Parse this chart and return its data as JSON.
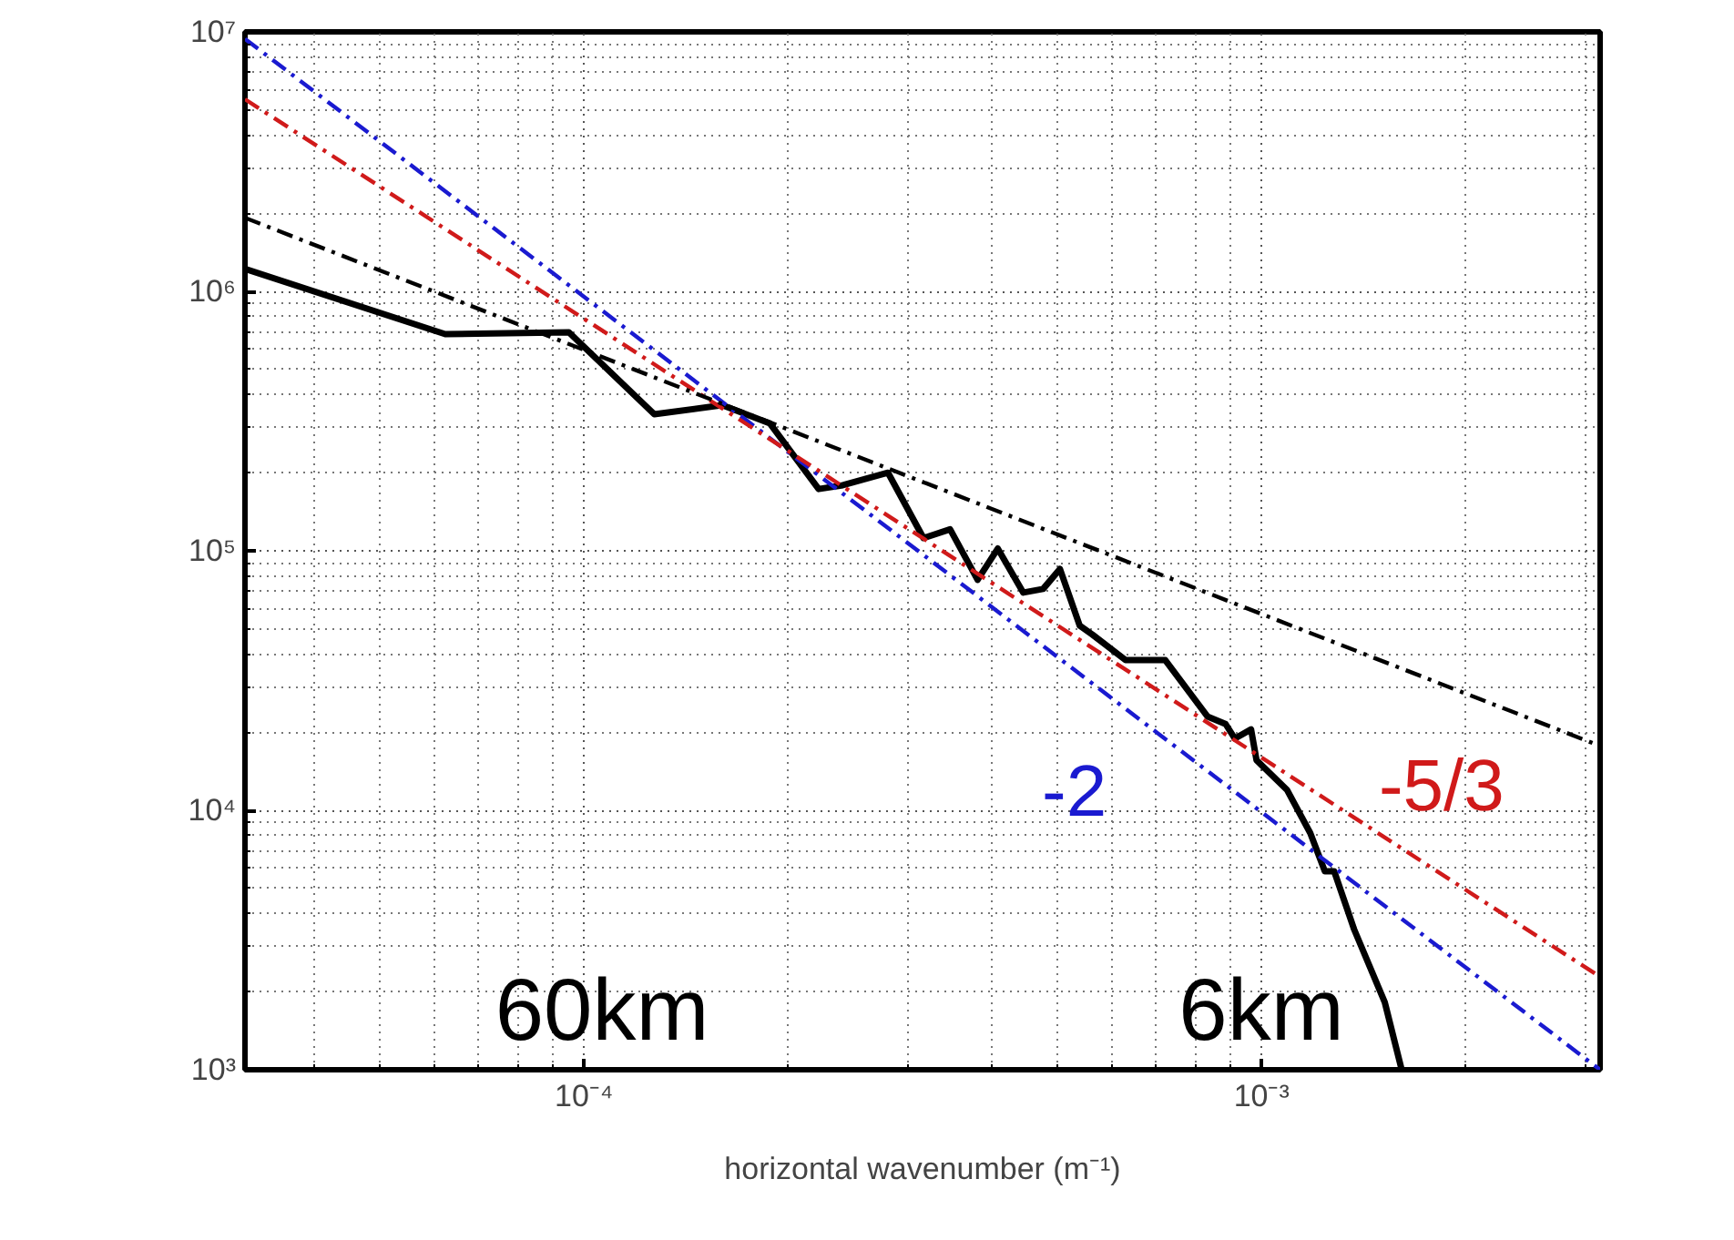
{
  "chart_data": {
    "type": "line",
    "xlabel": "horizontal wavenumber (m⁻¹)",
    "log": "xy",
    "grid": true,
    "xlim": [
      3.16e-05,
      0.00316
    ],
    "ylim": [
      1000,
      10000000
    ],
    "xticks": [
      {
        "value": 0.0001,
        "label": "10⁻⁴"
      },
      {
        "value": 0.001,
        "label": "10⁻³"
      }
    ],
    "yticks": [
      {
        "value": 1000,
        "label": "10³"
      },
      {
        "value": 10000,
        "label": "10⁴"
      },
      {
        "value": 100000,
        "label": "10⁵"
      },
      {
        "value": 1000000,
        "label": "10⁶"
      },
      {
        "value": 10000000,
        "label": "10⁷"
      }
    ],
    "series": [
      {
        "color": "#000000",
        "line_style": "solid",
        "x": [
          3.16e-05,
          6.24e-05,
          9.5e-05,
          0.000127,
          0.00016,
          0.000188,
          0.000222,
          0.000241,
          0.000281,
          0.000317,
          0.000347,
          0.000381,
          0.000408,
          0.000445,
          0.000476,
          0.000504,
          0.000539,
          0.000563,
          0.00063,
          0.000721,
          0.000832,
          0.000885,
          0.000913,
          0.000965,
          0.000983,
          0.00109,
          0.00118,
          0.00124,
          0.00128,
          0.00137,
          0.00152,
          0.00161
        ],
        "values": [
          1220000,
          684000,
          695000,
          336000,
          364000,
          310000,
          173000,
          179000,
          200000,
          112000,
          121000,
          77300,
          102000,
          69000,
          71300,
          85100,
          51500,
          47500,
          37900,
          37900,
          23000,
          21500,
          18900,
          20500,
          15600,
          12000,
          8170,
          5820,
          5820,
          3470,
          1820,
          1000
        ]
      },
      {
        "name": "-2",
        "color": "#1a1ad0",
        "line_style": "dashdot",
        "x": [
          3.16e-05,
          0.00316
        ],
        "values": [
          9400000,
          1000
        ]
      },
      {
        "name": "-5/3",
        "color": "#d01a1a",
        "line_style": "dashdot",
        "x": [
          3.16e-05,
          0.00316
        ],
        "values": [
          5500000,
          2280
        ]
      },
      {
        "color": "#000000",
        "line_style": "dashdot",
        "x": [
          3.16e-05,
          0.00316
        ],
        "values": [
          1920000,
          17700
        ]
      }
    ],
    "annotations": [
      "60km",
      "6km"
    ]
  }
}
